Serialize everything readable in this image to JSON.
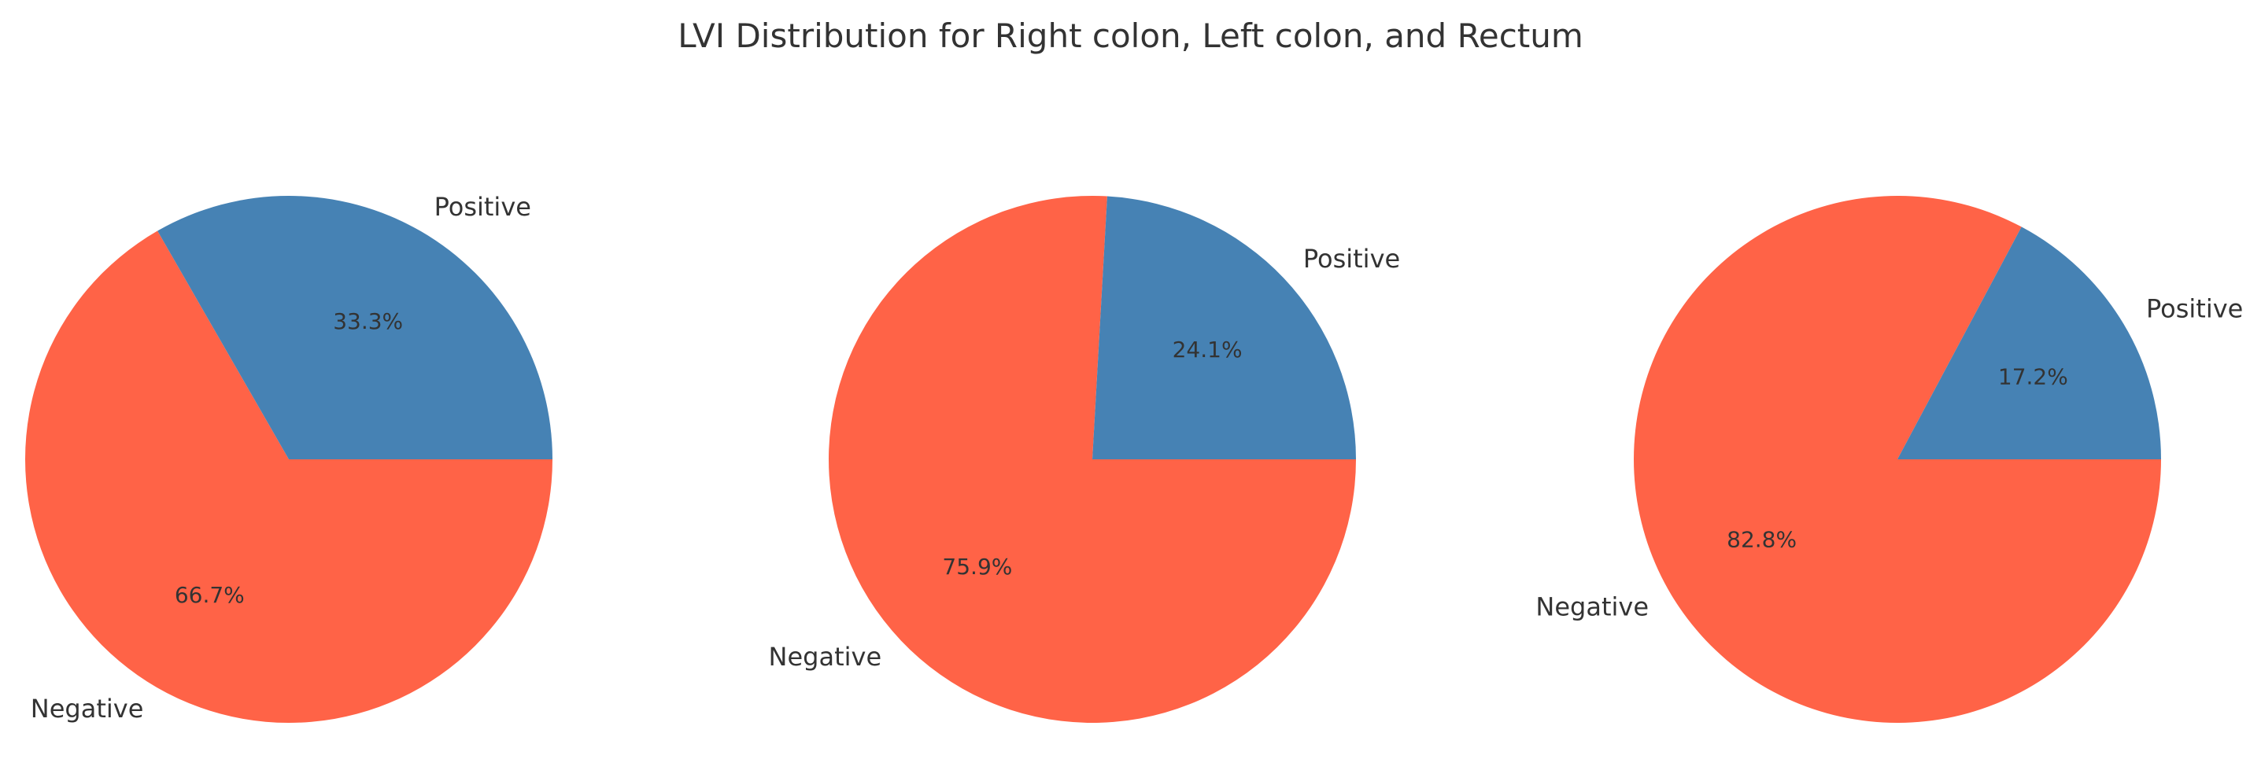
{
  "title": "LVI Distribution for Right colon, Left colon, and Rectum",
  "colors": {
    "Negative": "#FF6347",
    "Positive": "#4682B4"
  },
  "chart_data": [
    {
      "type": "pie",
      "title": "",
      "labels": [
        "Negative",
        "Positive"
      ],
      "values": [
        66.7,
        33.3
      ],
      "pct_labels": [
        "66.7%",
        "33.3%"
      ],
      "colors": [
        "#FF6347",
        "#4682B4"
      ],
      "start_angle": 0,
      "direction": "clockwise"
    },
    {
      "type": "pie",
      "title": "",
      "labels": [
        "Negative",
        "Positive"
      ],
      "values": [
        75.9,
        24.1
      ],
      "pct_labels": [
        "75.9%",
        "24.1%"
      ],
      "colors": [
        "#FF6347",
        "#4682B4"
      ],
      "start_angle": 0,
      "direction": "clockwise"
    },
    {
      "type": "pie",
      "title": "",
      "labels": [
        "Negative",
        "Positive"
      ],
      "values": [
        82.8,
        17.2
      ],
      "pct_labels": [
        "82.8%",
        "17.2%"
      ],
      "colors": [
        "#FF6347",
        "#4682B4"
      ],
      "start_angle": 0,
      "direction": "clockwise"
    }
  ]
}
